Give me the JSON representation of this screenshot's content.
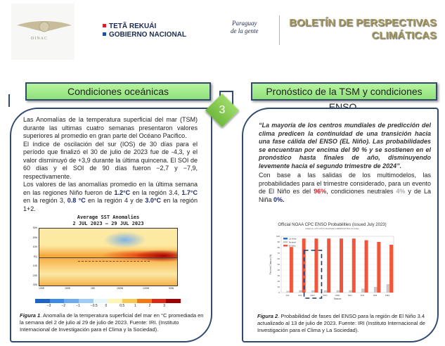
{
  "header": {
    "logo_text": "DINAC",
    "gov_line1": "TETÃ REKUÁI",
    "gov_line2": "GOBIERNO NACIONAL",
    "slogan_line1": "Paraguay",
    "slogan_line2": "de la gente",
    "title_line1": "BOLETÍN DE PERSPECTIVAS",
    "title_line2": "CLIMÁTICAS"
  },
  "page_number": "3",
  "left": {
    "section_title": "Condiciones oceánicas",
    "p1": "Las Anomalías de la temperatura superficial del mar (TSM) durante las ultimas cuatro semanas presentaron valores superiores al promedio en gran parte del Océano Pacifico.",
    "p2": "El índice de oscilación del sur (IOS) de 30 días para el período que finalizó el 30 de julio de 2023 fue de -4,3, y el valor disminuyó de +3,9 durante la última quincena. El SOI de 60 días y el SOI de 90 días fueron −2,7 y −7,9, respectivamente.",
    "p3a": "Los valores de las anomalías promedio en la última semana en las regiones Niño fueron de ",
    "v1": "1.2°C",
    "p3b": " en la región 3.4, ",
    "v2": "1.7°C",
    "p3c": " en la región 3, ",
    "v3": "0.8 °C",
    "p3d": " en la región 4 y de ",
    "v4": "3.0°C",
    "p3e": " en la región 1+2.",
    "map_title": "Average SST Anomalies",
    "map_dates": "2 JUL 2023 — 29 JUL 2023",
    "map_lat_labels": [
      "30N",
      "20N",
      "10N",
      "EQ",
      "10S",
      "20S",
      "30S"
    ],
    "map_lon_labels": [
      "120E",
      "150E",
      "180",
      "150W",
      "120W",
      "90W"
    ],
    "colorbar_labels": [
      "−3",
      "−2",
      "−1",
      "−0.5",
      "0",
      "0.5",
      "1",
      "2",
      "3"
    ],
    "colorbar_colors": [
      "#1e64c8",
      "#3c8ce6",
      "#6eaaf0",
      "#a0cdf5",
      "#e6f5fa",
      "#fff5b4",
      "#fac850",
      "#f57814",
      "#dc2814",
      "#a00000"
    ],
    "caption_label": "Figura 1",
    "caption": ". Anomalía de la temperatura superficial del mar en °C promediada en la semana del 2 de julio al 29 de julio de 2023. Fuente: IRI. (Instituto Internacional de Investigación para el Clima y la Sociedad)."
  },
  "right": {
    "section_title": "Pronóstico de la TSM y condiciones ENSO.",
    "quote": "“La mayoría de los centros mundiales de predicción del clima predicen la continuidad de una transición hacia una fase cálida del ENSO (EL Niño). Las probabilidades se encuentran por encima del 90 % y se sostienen en el pronóstico hasta finales de año, disminuyendo levemente hacia el segundo trimestre de 2024”.",
    "p1a": "Con base a las salidas de los multimodelos, las probabilidades para el trimestre considerado, para un evento de El Niño es del ",
    "nino": "96%",
    "p1b": ", condiciones neutrales ",
    "neutral": "4%",
    "p1c": " y de La Niña ",
    "nina": "0%.",
    "caption_label": "Figura 2",
    "caption": ". Probabilidad de fases del ENSO para la región de El Niño 3.4 actualizado al 13 de julio de 2023. Fuente: IRI (Instituto Internacional de Investigación para el Clima y La Sociedad)."
  },
  "chart_data": {
    "type": "bar",
    "title": "Official NOAA CPC ENSO Probabilities (issued July 2023)",
    "subtitle": "based on -0.5°/+0.5°C thresholds in ERSSTv5 Niño-3.4 index",
    "xlabel": "Season",
    "ylabel": "Percent Chance (%)",
    "ylim": [
      0,
      100
    ],
    "yticks": [
      0,
      10,
      20,
      30,
      40,
      50,
      60,
      70,
      80,
      90,
      100
    ],
    "legend": "top-left",
    "grid": true,
    "categories": [
      "JJA",
      "JAS",
      "ASO",
      "SON",
      "OND",
      "NDJ",
      "DJF",
      "JFM",
      "FMA"
    ],
    "series": [
      {
        "name": "La Niña",
        "color": "#1f6fe0",
        "values": [
          0,
          0,
          0,
          0,
          0,
          0,
          0,
          0,
          0
        ]
      },
      {
        "name": "Neutral",
        "color": "#c8c8c8",
        "values": [
          3,
          4,
          4,
          4,
          4,
          4,
          7,
          10,
          15
        ]
      },
      {
        "name": "El Niño",
        "color": "#f4553a",
        "values": [
          81,
          96,
          96,
          96,
          96,
          96,
          93,
          90,
          85
        ]
      }
    ],
    "highlight": "dashed box around ASO–SON"
  }
}
